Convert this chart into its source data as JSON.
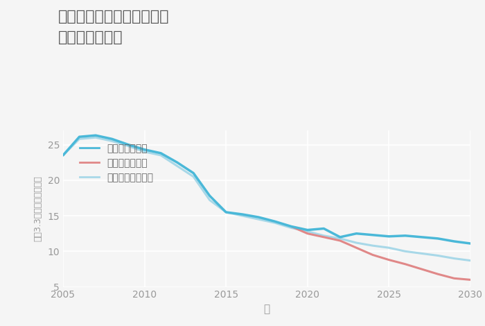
{
  "title": "三重県伊賀市希望ヶ丘東の\n土地の価格推移",
  "xlabel": "年",
  "ylabel": "坪（3.3㎡）単価（万円）",
  "bg_color": "#f5f5f5",
  "plot_bg_color": "#f5f5f5",
  "grid_color": "#ffffff",
  "title_color": "#555555",
  "axis_color": "#999999",
  "ylim": [
    5,
    27
  ],
  "xlim": [
    2005,
    2030
  ],
  "yticks": [
    5,
    10,
    15,
    20,
    25
  ],
  "xticks": [
    2005,
    2010,
    2015,
    2020,
    2025,
    2030
  ],
  "good_scenario": {
    "label": "グッドシナリオ",
    "color": "#4ab8d8",
    "linewidth": 2.5,
    "x": [
      2005,
      2006,
      2007,
      2008,
      2009,
      2010,
      2011,
      2012,
      2013,
      2014,
      2015,
      2016,
      2017,
      2018,
      2019,
      2020,
      2021,
      2022,
      2023,
      2024,
      2025,
      2026,
      2027,
      2028,
      2029,
      2030
    ],
    "y": [
      23.5,
      26.1,
      26.3,
      25.8,
      25.0,
      24.3,
      23.8,
      22.5,
      21.0,
      17.8,
      15.5,
      15.2,
      14.8,
      14.2,
      13.5,
      13.0,
      13.2,
      12.0,
      12.5,
      12.3,
      12.1,
      12.2,
      12.0,
      11.8,
      11.4,
      11.1
    ]
  },
  "bad_scenario": {
    "label": "バッドシナリオ",
    "color": "#e08888",
    "linewidth": 2.2,
    "x": [
      2019,
      2020,
      2021,
      2022,
      2023,
      2024,
      2025,
      2026,
      2027,
      2028,
      2029,
      2030
    ],
    "y": [
      13.5,
      12.5,
      12.0,
      11.5,
      10.5,
      9.5,
      8.8,
      8.2,
      7.5,
      6.8,
      6.2,
      6.0
    ]
  },
  "normal_scenario": {
    "label": "ノーマルシナリオ",
    "color": "#a8d8e8",
    "linewidth": 2.2,
    "x": [
      2005,
      2006,
      2007,
      2008,
      2009,
      2010,
      2011,
      2012,
      2013,
      2014,
      2015,
      2016,
      2017,
      2018,
      2019,
      2020,
      2021,
      2022,
      2023,
      2024,
      2025,
      2026,
      2027,
      2028,
      2029,
      2030
    ],
    "y": [
      23.5,
      25.8,
      26.0,
      25.5,
      24.8,
      24.0,
      23.5,
      22.0,
      20.5,
      17.2,
      15.5,
      15.0,
      14.5,
      14.0,
      13.3,
      12.8,
      12.2,
      11.8,
      11.2,
      10.8,
      10.5,
      10.0,
      9.7,
      9.4,
      9.0,
      8.7
    ]
  },
  "legend_color": "#666666",
  "legend_fontsize": 10
}
